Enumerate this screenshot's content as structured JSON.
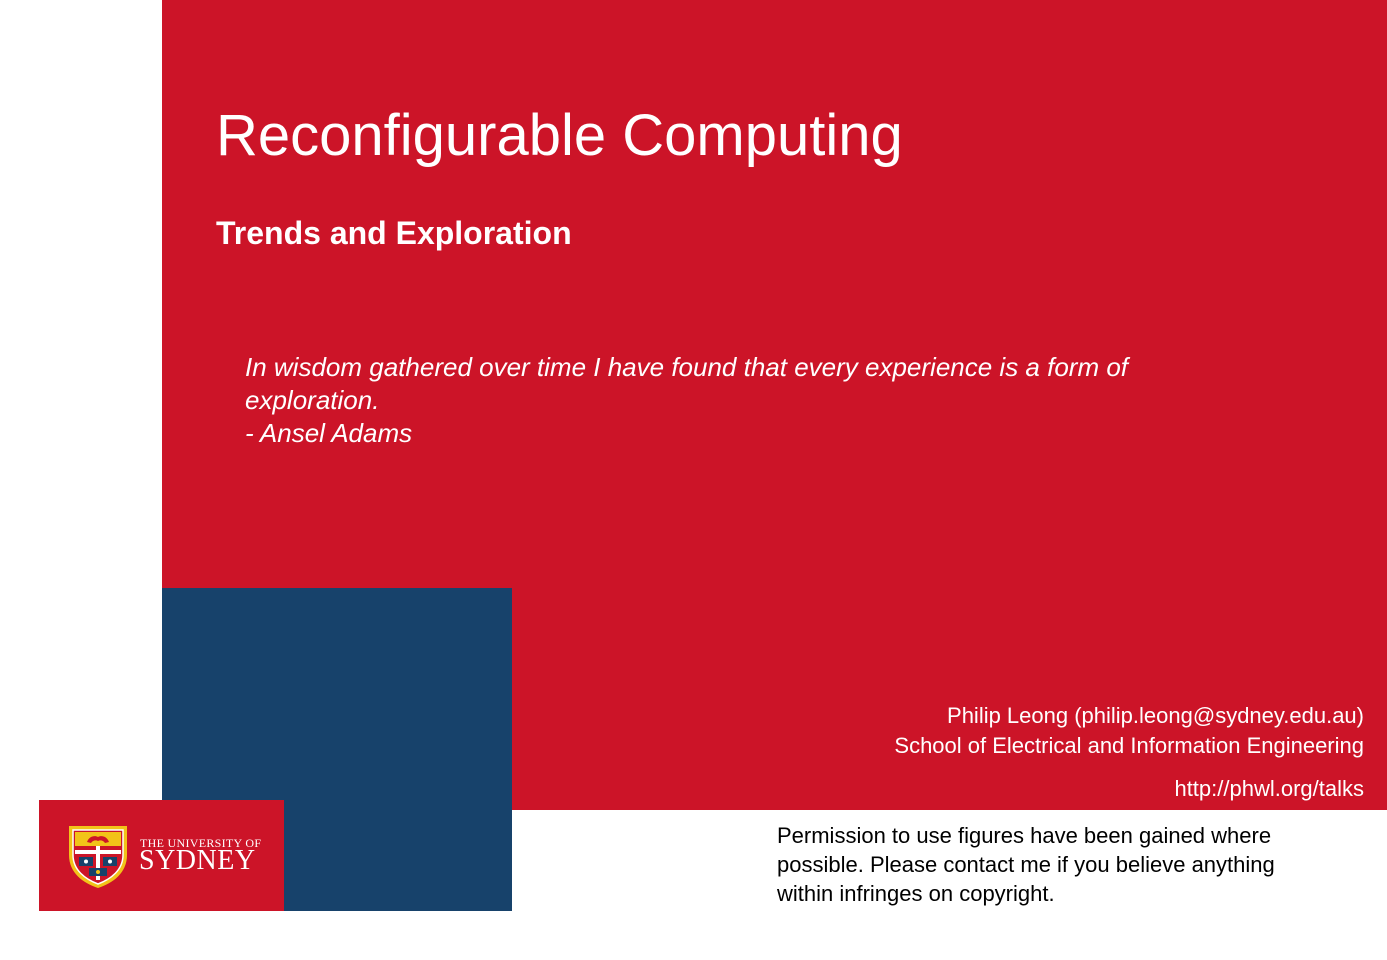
{
  "slide": {
    "title": "Reconfigurable Computing",
    "subtitle": "Trends and Exploration",
    "quote": {
      "lines": [
        "In wisdom gathered over time I have found that every experience is a form of",
        "exploration."
      ],
      "attribution": "- Ansel Adams"
    },
    "author": {
      "name_email": "Philip Leong (philip.leong@sydney.edu.au)",
      "school": "School of Electrical and Information Engineering"
    },
    "url": "http://phwl.org/talks",
    "permission": [
      "Permission to use figures have been gained where",
      "possible. Please contact me if you believe anything",
      "within infringes on copyright."
    ],
    "logo": {
      "top_line": "THE UNIVERSITY OF",
      "name": "SYDNEY",
      "icon": "university-crest-icon"
    }
  },
  "colors": {
    "red": "#cc1428",
    "blue": "#17426b",
    "gold": "#f2c318",
    "white": "#ffffff"
  }
}
